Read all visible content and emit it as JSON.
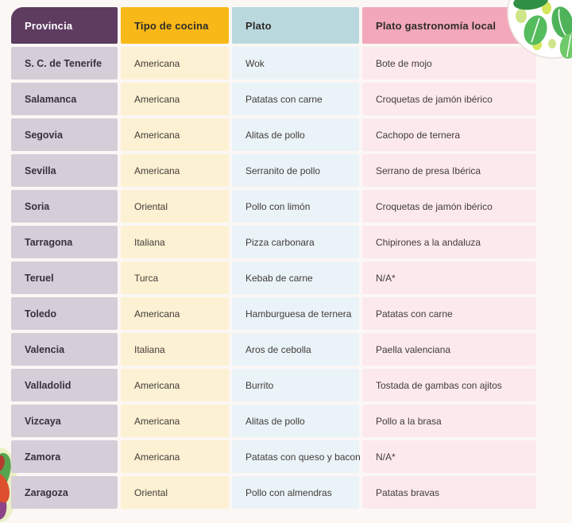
{
  "page": {
    "background": "#fbf7f5"
  },
  "table": {
    "columns": [
      {
        "key": "provincia",
        "label": "Provincia",
        "header_bg": "#5d3c60",
        "header_text": "#ffffff",
        "cell_bg": "#d5cdd7"
      },
      {
        "key": "tipo",
        "label": "Tipo de cocina",
        "header_bg": "#f8b817",
        "header_text": "#2e2b28",
        "cell_bg": "#fdf1d3"
      },
      {
        "key": "plato",
        "label": "Plato",
        "header_bg": "#b9d9de",
        "header_text": "#2e2b28",
        "cell_bg": "#eaf3f8"
      },
      {
        "key": "local",
        "label": "Plato gastronomía local",
        "header_bg": "#f2a8ba",
        "header_text": "#2e2b28",
        "cell_bg": "#fce9ee"
      }
    ],
    "rows": [
      {
        "provincia": "S. C. de Tenerife",
        "tipo": "Americana",
        "plato": "Wok",
        "local": "Bote de mojo"
      },
      {
        "provincia": "Salamanca",
        "tipo": "Americana",
        "plato": "Patatas con carne",
        "local": "Croquetas de jamón ibérico"
      },
      {
        "provincia": "Segovia",
        "tipo": "Americana",
        "plato": "Alitas de pollo",
        "local": "Cachopo de ternera"
      },
      {
        "provincia": "Sevilla",
        "tipo": "Americana",
        "plato": "Serranito de pollo",
        "local": "Serrano de presa Ibérica"
      },
      {
        "provincia": "Soria",
        "tipo": "Oriental",
        "plato": "Pollo con limón",
        "local": "Croquetas de jamón ibérico"
      },
      {
        "provincia": "Tarragona",
        "tipo": "Italiana",
        "plato": "Pizza carbonara",
        "local": "Chipirones a la andaluza"
      },
      {
        "provincia": "Teruel",
        "tipo": "Turca",
        "plato": "Kebab de carne",
        "local": "N/A*"
      },
      {
        "provincia": "Toledo",
        "tipo": "Americana",
        "plato": "Hamburguesa de ternera",
        "local": "Patatas con carne"
      },
      {
        "provincia": "Valencia",
        "tipo": "Italiana",
        "plato": "Aros de cebolla",
        "local": "Paella valenciana"
      },
      {
        "provincia": "Valladolid",
        "tipo": "Americana",
        "plato": "Burrito",
        "local": "Tostada de gambas con ajitos"
      },
      {
        "provincia": "Vizcaya",
        "tipo": "Americana",
        "plato": "Alitas de pollo",
        "local": "Pollo a la brasa"
      },
      {
        "provincia": "Zamora",
        "tipo": "Americana",
        "plato": "Patatas con queso y bacon",
        "local": "N/A*"
      },
      {
        "provincia": "Zaragoza",
        "tipo": "Oriental",
        "plato": "Pollo con almendras",
        "local": "Patatas bravas"
      }
    ]
  },
  "decorations": {
    "bowl_illustration": {
      "name": "salad-bowl-with-leaves",
      "plate_color": "#ffffff",
      "plate_edge_color": "#e8dfd8",
      "leaf_dark": "#2f8f44",
      "leaf_medium": "#55bc5e",
      "leaf_light": "#6fca6a",
      "olive_yellow_green": "#d3e65c",
      "olive_pale": "#cfe58a",
      "olive_tan": "#ded29b"
    },
    "left_edge_illustration": {
      "name": "vegetable-cluster",
      "blob_light": "#eaf0c3",
      "green": "#56a44e",
      "red": "#dd4f2d",
      "purple": "#8c4387"
    }
  }
}
